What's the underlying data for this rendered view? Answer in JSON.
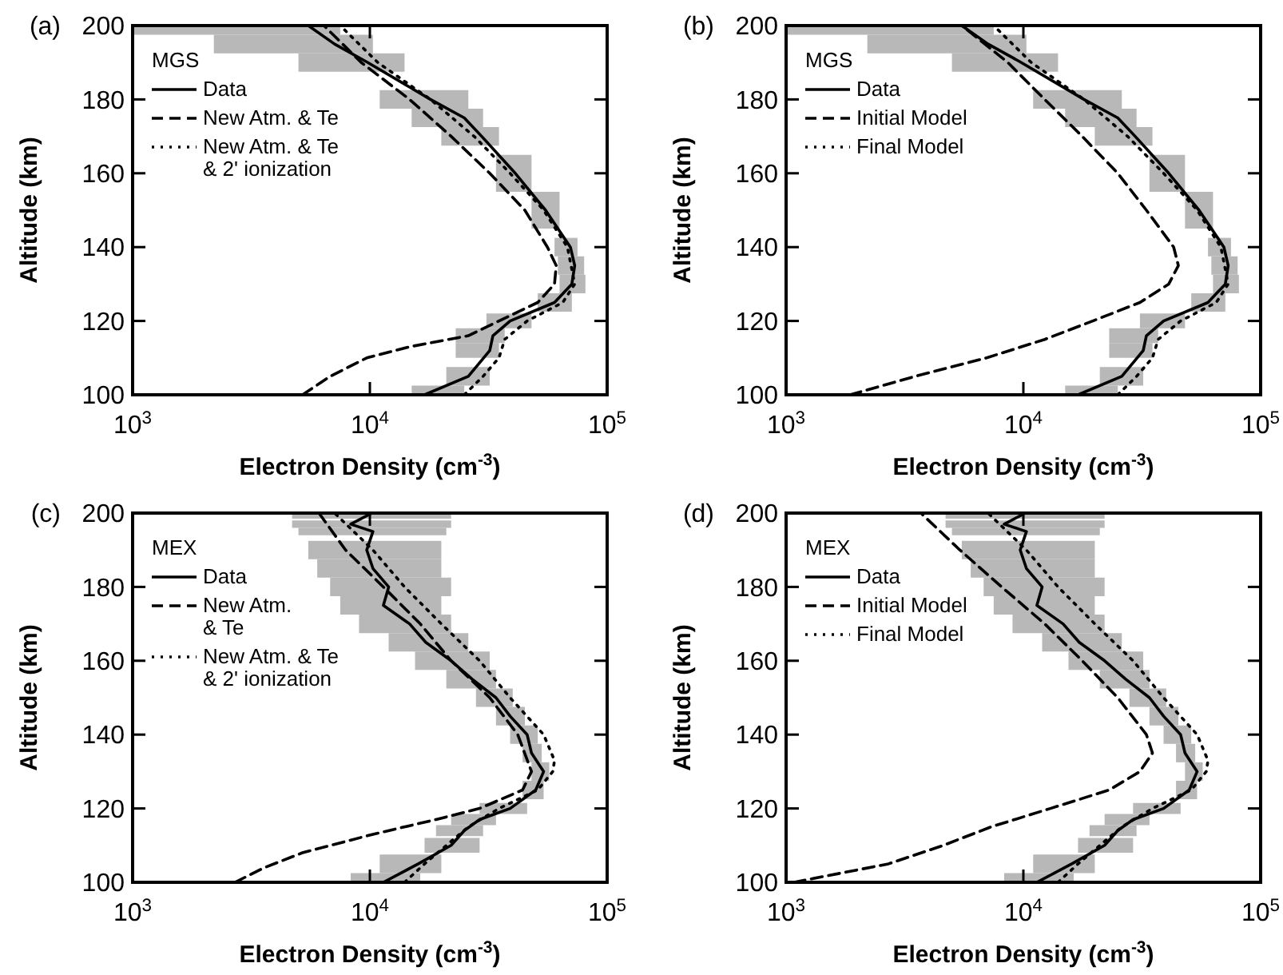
{
  "chart_data": [
    {
      "type": "line",
      "title": "(a)",
      "legend_title": "MGS",
      "xlabel": "Electron Density (cm$^{-3}$)",
      "ylabel": "Altitude (km)",
      "log": "x",
      "xlim": [
        1000,
        100000
      ],
      "xticks": [
        {
          "value": 1000,
          "label": "10$^{3}$"
        },
        {
          "value": 10000,
          "label": "10$^{4}$"
        },
        {
          "value": 100000,
          "label": "10$^{5}$"
        }
      ],
      "ylim": [
        100,
        200
      ],
      "yticks": [
        100,
        120,
        140,
        160,
        180,
        200
      ],
      "legend": "top left",
      "grid": false,
      "series": [
        {
          "name": "Data",
          "color": "#000000",
          "line_style": "solid",
          "x": [
            17000,
            26000,
            32000,
            33000,
            39000,
            60000,
            71000,
            73000,
            70000,
            55000,
            41000,
            29600,
            25000,
            18000,
            9800,
            7100,
            5500
          ],
          "values": [
            100,
            105,
            112,
            116,
            120,
            125,
            130,
            135,
            140,
            150,
            160,
            170,
            175,
            180,
            190,
            195,
            200
          ],
          "xerrors": [
            [
              15000,
              25000
            ],
            [
              21000,
              32000
            ],
            [
              23000,
              35000
            ],
            [
              23000,
              37000
            ],
            [
              31000,
              48000
            ],
            [
              51000,
              71000
            ],
            [
              63000,
              81000
            ],
            [
              62000,
              80000
            ],
            [
              60000,
              75000
            ],
            [
              48000,
              63000
            ],
            [
              34000,
              48000
            ],
            [
              20000,
              35000
            ],
            [
              15000,
              30000
            ],
            [
              11000,
              26000
            ],
            [
              5000,
              14000
            ],
            [
              2200,
              10300
            ],
            [
              1000,
              7500
            ]
          ]
        },
        {
          "name": "New Atm. & Te",
          "color": "#000000",
          "line_style": "dashed",
          "x": [
            5200,
            6800,
            9700,
            14700,
            26000,
            35000,
            51000,
            60000,
            61000,
            56000,
            45000,
            32000,
            22000,
            14700,
            9200,
            6400
          ],
          "values": [
            100,
            105,
            110,
            113,
            116,
            120,
            125,
            130,
            135,
            140,
            150,
            160,
            170,
            180,
            190,
            200
          ]
        },
        {
          "name": "New Atm. & Te\n& 2' ionization",
          "color": "#000000",
          "line_style": "dotted",
          "x": [
            25000,
            30000,
            35000,
            37000,
            46000,
            65000,
            73000,
            68000,
            54000,
            39000,
            27500,
            18000,
            10800,
            7500
          ],
          "values": [
            100,
            105,
            110,
            115,
            120,
            125,
            130,
            140,
            150,
            160,
            170,
            180,
            190,
            200
          ]
        }
      ]
    },
    {
      "type": "line",
      "title": "(b)",
      "legend_title": "MGS",
      "xlabel": "Electron Density (cm$^{-3}$)",
      "ylabel": "Altitude (km)",
      "log": "x",
      "xlim": [
        1000,
        100000
      ],
      "xticks": [
        {
          "value": 1000,
          "label": "10$^{3}$"
        },
        {
          "value": 10000,
          "label": "10$^{4}$"
        },
        {
          "value": 100000,
          "label": "10$^{5}$"
        }
      ],
      "ylim": [
        100,
        200
      ],
      "yticks": [
        100,
        120,
        140,
        160,
        180,
        200
      ],
      "legend": "top left",
      "grid": false,
      "series": [
        {
          "name": "Data",
          "color": "#000000",
          "line_style": "solid",
          "x": [
            17000,
            26000,
            32000,
            33000,
            39000,
            60000,
            71000,
            73000,
            70000,
            55000,
            41000,
            29600,
            25000,
            18000,
            9800,
            7100,
            5500
          ],
          "values": [
            100,
            105,
            112,
            116,
            120,
            125,
            130,
            135,
            140,
            150,
            160,
            170,
            175,
            180,
            190,
            195,
            200
          ],
          "xerrors": [
            [
              15000,
              25000
            ],
            [
              21000,
              32000
            ],
            [
              23000,
              35000
            ],
            [
              23000,
              37000
            ],
            [
              31000,
              48000
            ],
            [
              51000,
              71000
            ],
            [
              63000,
              81000
            ],
            [
              62000,
              80000
            ],
            [
              60000,
              75000
            ],
            [
              48000,
              63000
            ],
            [
              34000,
              48000
            ],
            [
              20000,
              35000
            ],
            [
              15000,
              30000
            ],
            [
              11000,
              26000
            ],
            [
              5000,
              14000
            ],
            [
              2200,
              10300
            ],
            [
              1000,
              7500
            ]
          ]
        },
        {
          "name": "Initial Model",
          "color": "#000000",
          "line_style": "dashed",
          "x": [
            1860,
            3500,
            7000,
            12300,
            19600,
            31000,
            41000,
            45000,
            43000,
            33000,
            25000,
            17700,
            12300,
            8600,
            5500
          ],
          "values": [
            100,
            105,
            110,
            115,
            120,
            125,
            130,
            135,
            140,
            150,
            160,
            170,
            180,
            190,
            200
          ]
        },
        {
          "name": "Final Model",
          "color": "#000000",
          "line_style": "dotted",
          "x": [
            25000,
            30000,
            35000,
            37000,
            46000,
            65000,
            73000,
            68000,
            54000,
            39000,
            27500,
            18000,
            10800,
            7500
          ],
          "values": [
            100,
            105,
            110,
            115,
            120,
            125,
            130,
            140,
            150,
            160,
            170,
            180,
            190,
            200
          ]
        }
      ]
    },
    {
      "type": "line",
      "title": "(c)",
      "legend_title": "MEX",
      "xlabel": "Electron Density (cm$^{-3}$)",
      "ylabel": "Altitude (km)",
      "log": "x",
      "xlim": [
        1000,
        100000
      ],
      "xticks": [
        {
          "value": 1000,
          "label": "10$^{3}$"
        },
        {
          "value": 10000,
          "label": "10$^{4}$"
        },
        {
          "value": 100000,
          "label": "10$^{5}$"
        }
      ],
      "ylim": [
        100,
        200
      ],
      "yticks": [
        100,
        120,
        140,
        160,
        180,
        200
      ],
      "legend": "top left",
      "grid": false,
      "series": [
        {
          "name": "Data",
          "color": "#000000",
          "line_style": "solid",
          "x": [
            11400,
            16000,
            22000,
            25000,
            29000,
            39000,
            50000,
            54000,
            48000,
            46000,
            39000,
            34000,
            27000,
            22000,
            17200,
            14700,
            11400,
            12000,
            10300,
            9700,
            10300,
            8300,
            10200
          ],
          "values": [
            100,
            105,
            110,
            114,
            117,
            120,
            125,
            130,
            135,
            140,
            145,
            150,
            155,
            160,
            165,
            170,
            175,
            180,
            185,
            190,
            195,
            197,
            200
          ],
          "xerrors": [
            [
              8300,
              16300
            ],
            [
              11000,
              20000
            ],
            [
              17000,
              29000
            ],
            [
              19000,
              30000
            ],
            [
              22000,
              34000
            ],
            [
              29000,
              46000
            ],
            [
              44000,
              54000
            ],
            [
              48000,
              57000
            ],
            [
              44000,
              53000
            ],
            [
              39000,
              51000
            ],
            [
              34000,
              45000
            ],
            [
              28000,
              40000
            ],
            [
              21000,
              34000
            ],
            [
              15500,
              32000
            ],
            [
              12000,
              26000
            ],
            [
              9000,
              22000
            ],
            [
              7500,
              20000
            ],
            [
              6800,
              22000
            ],
            [
              6000,
              20000
            ],
            [
              5500,
              20000
            ],
            [
              5000,
              21000
            ],
            [
              4700,
              22000
            ],
            [
              4700,
              22000
            ]
          ]
        },
        {
          "name": "New Atm.\n& Te",
          "color": "#000000",
          "line_style": "dashed",
          "x": [
            2700,
            3600,
            5200,
            10300,
            19000,
            29000,
            44000,
            48000,
            42000,
            32000,
            22000,
            16300,
            11400,
            7900,
            6100
          ],
          "values": [
            100,
            104,
            108,
            113,
            117,
            120,
            125,
            130,
            140,
            150,
            160,
            170,
            180,
            190,
            200
          ]
        },
        {
          "name": "New Atm. & Te\n& 2' ionization",
          "color": "#000000",
          "line_style": "dotted",
          "x": [
            14000,
            17000,
            21000,
            26000,
            35000,
            51000,
            59000,
            60000,
            54000,
            39000,
            29000,
            20000,
            14000,
            10300,
            7100
          ],
          "values": [
            100,
            105,
            110,
            115,
            120,
            125,
            130,
            133,
            140,
            150,
            160,
            170,
            180,
            190,
            200
          ]
        }
      ]
    },
    {
      "type": "line",
      "title": "(d)",
      "legend_title": "MEX",
      "xlabel": "Electron Density (cm$^{-3}$)",
      "ylabel": "Altitude (km)",
      "log": "x",
      "xlim": [
        1000,
        100000
      ],
      "xticks": [
        {
          "value": 1000,
          "label": "10$^{3}$"
        },
        {
          "value": 10000,
          "label": "10$^{4}$"
        },
        {
          "value": 100000,
          "label": "10$^{5}$"
        }
      ],
      "ylim": [
        100,
        200
      ],
      "yticks": [
        100,
        120,
        140,
        160,
        180,
        200
      ],
      "legend": "top left",
      "grid": false,
      "series": [
        {
          "name": "Data",
          "color": "#000000",
          "line_style": "solid",
          "x": [
            11400,
            16000,
            22000,
            25000,
            29000,
            39000,
            50000,
            54000,
            48000,
            46000,
            39000,
            34000,
            27000,
            22000,
            17200,
            14700,
            11400,
            12000,
            10300,
            9700,
            10300,
            8300,
            10200
          ],
          "values": [
            100,
            105,
            110,
            114,
            117,
            120,
            125,
            130,
            135,
            140,
            145,
            150,
            155,
            160,
            165,
            170,
            175,
            180,
            185,
            190,
            195,
            197,
            200
          ],
          "xerrors": [
            [
              8300,
              16300
            ],
            [
              11000,
              20000
            ],
            [
              17000,
              29000
            ],
            [
              19000,
              30000
            ],
            [
              22000,
              34000
            ],
            [
              29000,
              46000
            ],
            [
              44000,
              54000
            ],
            [
              48000,
              57000
            ],
            [
              44000,
              53000
            ],
            [
              39000,
              51000
            ],
            [
              34000,
              45000
            ],
            [
              28000,
              40000
            ],
            [
              21000,
              34000
            ],
            [
              15500,
              32000
            ],
            [
              12000,
              26000
            ],
            [
              9000,
              22000
            ],
            [
              7500,
              20000
            ],
            [
              6800,
              22000
            ],
            [
              6000,
              20000
            ],
            [
              5500,
              20000
            ],
            [
              5000,
              21000
            ],
            [
              4700,
              22000
            ],
            [
              4700,
              22000
            ]
          ]
        },
        {
          "name": "Initial Model",
          "color": "#000000",
          "line_style": "dashed",
          "x": [
            1080,
            2700,
            4600,
            7300,
            13000,
            23000,
            31000,
            35000,
            33000,
            25000,
            17700,
            12300,
            8100,
            5400,
            3700
          ],
          "values": [
            100,
            105,
            110,
            115,
            120,
            125,
            130,
            135,
            140,
            150,
            160,
            170,
            180,
            190,
            200
          ]
        },
        {
          "name": "Final Model",
          "color": "#000000",
          "line_style": "dotted",
          "x": [
            14000,
            17000,
            21000,
            26000,
            35000,
            51000,
            59000,
            60000,
            54000,
            39000,
            29000,
            20000,
            14000,
            10300,
            7100
          ],
          "values": [
            100,
            105,
            110,
            115,
            120,
            125,
            130,
            133,
            140,
            150,
            160,
            170,
            180,
            190,
            200
          ]
        }
      ]
    }
  ]
}
